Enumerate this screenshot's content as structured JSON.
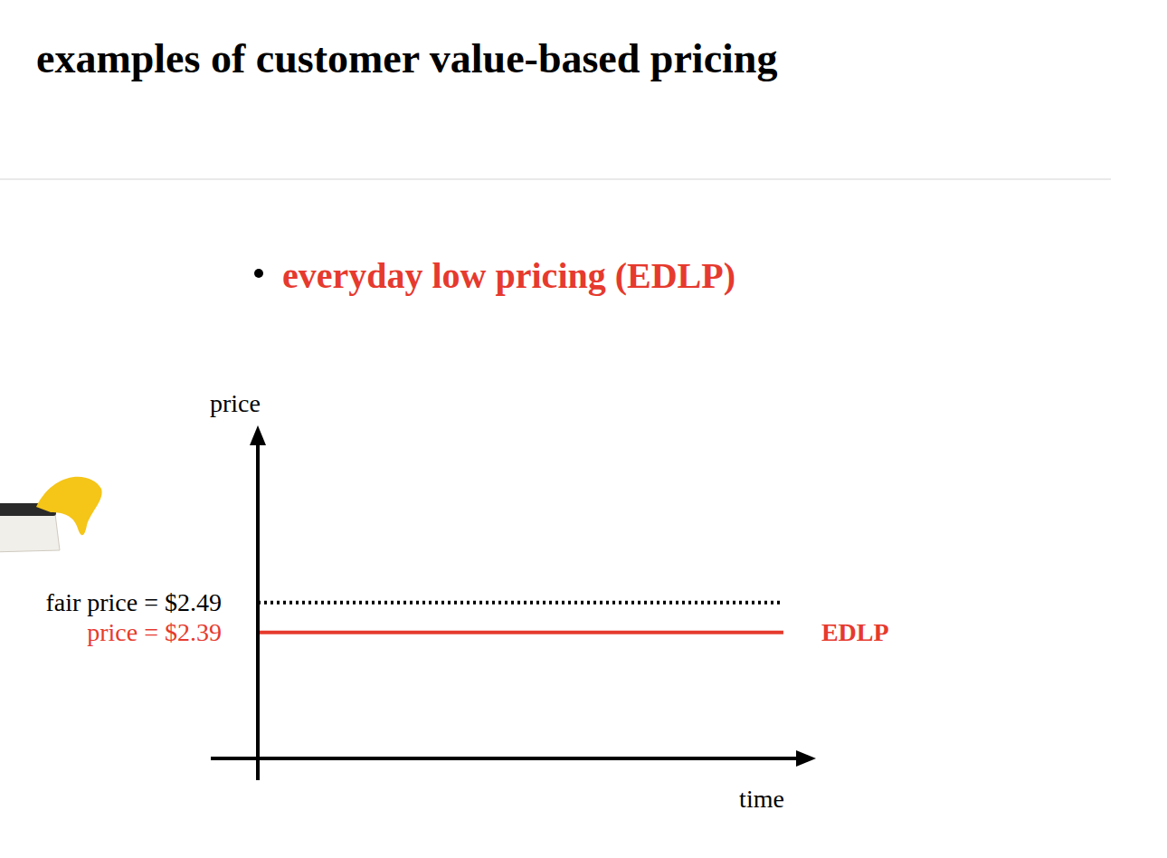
{
  "chart_data": {
    "type": "line",
    "title": "examples of customer value-based pricing",
    "subtitle": "everyday low pricing (EDLP)",
    "x_label": "time",
    "y_label": "price",
    "x": [
      0,
      20
    ],
    "xlim": [
      0,
      21
    ],
    "xticks": [],
    "ylim": [
      1.97,
      3.05
    ],
    "yticks": [
      {
        "value": 2.49,
        "label": "fair price = $2.49"
      },
      {
        "value": 2.39,
        "label": "price = $2.39"
      }
    ],
    "tick_labels": "y",
    "grid": false,
    "series": [
      {
        "values": [
          2.49,
          2.49
        ],
        "color": "#000000",
        "line_style": "dotted"
      },
      {
        "name": "EDLP",
        "values": [
          2.39,
          2.39
        ],
        "color": "#e63a2e",
        "line_style": "solid"
      }
    ]
  }
}
